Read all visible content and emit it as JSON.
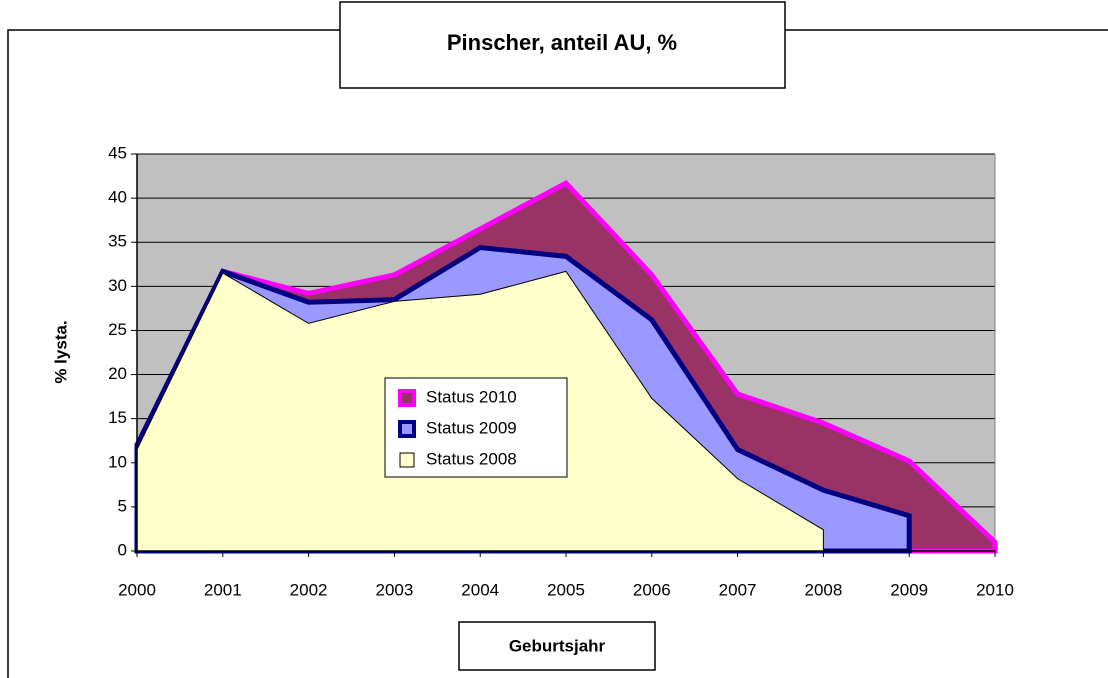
{
  "chart_data": {
    "type": "area",
    "title": "Pinscher, anteil AU, %",
    "x_label": "Geburtsjahr",
    "y_label": "% lysta.",
    "categories": [
      "2000",
      "2001",
      "2002",
      "2003",
      "2004",
      "2005",
      "2006",
      "2007",
      "2008",
      "2009",
      "2010"
    ],
    "series": [
      {
        "name": "Status 2010",
        "color": "#993366",
        "line_color": "#ff00ff",
        "values": [
          12,
          31.7,
          29.2,
          31.3,
          36.5,
          41.7,
          31.3,
          17.8,
          14.5,
          10.2,
          1
        ]
      },
      {
        "name": "Status 2009",
        "color": "#9999ff",
        "line_color": "#000080",
        "values": [
          12,
          31.7,
          28.2,
          28.5,
          34.4,
          33.4,
          26.2,
          11.5,
          6.9,
          4.0,
          null
        ]
      },
      {
        "name": "Status 2008",
        "color": "#ffffcc",
        "line_color": "#000000",
        "values": [
          11.5,
          31.5,
          25.8,
          28.3,
          29.1,
          31.7,
          17.3,
          8.2,
          2.4,
          null,
          null
        ]
      }
    ],
    "ylim": [
      0,
      45
    ],
    "yticks": [
      0,
      5,
      10,
      15,
      20,
      25,
      30,
      35,
      40,
      45
    ],
    "grid": true
  }
}
